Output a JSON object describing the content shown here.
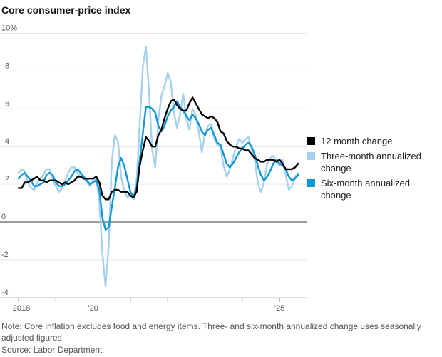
{
  "title": "Core consumer-price index",
  "legend": {
    "items": [
      {
        "label": "12 month change"
      },
      {
        "label": "Three-month annualized change"
      },
      {
        "label": "Six-month annualized change"
      }
    ]
  },
  "notes": {
    "note": "Note: Core inflation excludes food and energy items. Three- and six-month annualized change uses seasonally adjusted figures.",
    "source": "Source: Labor Department"
  },
  "chart_data": {
    "type": "line",
    "title": "Core consumer-price index",
    "xlabel": "",
    "ylabel": "",
    "unit": "percent",
    "frequency": "monthly",
    "x_start": "2018-01",
    "x_end": "2025-07",
    "ylim": [
      -4,
      10
    ],
    "grid": "horizontal",
    "legend_position": "right",
    "y_ticks": [
      10,
      8,
      6,
      4,
      2,
      0,
      -2,
      -4
    ],
    "y_tick_labels": [
      "10%",
      "8",
      "6",
      "4",
      "2",
      "0",
      "-2",
      "-4"
    ],
    "x_tick_years": [
      2018,
      2019,
      2020,
      2021,
      2022,
      2023,
      2024,
      2025
    ],
    "x_tick_labels": [
      "2018",
      "",
      "’20",
      "",
      "",
      "",
      "",
      "’25"
    ],
    "series": [
      {
        "name": "12 month change",
        "color": "#000000",
        "values": [
          1.8,
          1.8,
          2.1,
          2.1,
          2.2,
          2.3,
          2.4,
          2.2,
          2.2,
          2.1,
          2.2,
          2.2,
          2.2,
          2.1,
          2.0,
          2.1,
          2.0,
          2.1,
          2.2,
          2.4,
          2.4,
          2.3,
          2.3,
          2.3,
          2.3,
          2.4,
          2.1,
          1.4,
          1.2,
          1.2,
          1.6,
          1.7,
          1.7,
          1.6,
          1.6,
          1.6,
          1.4,
          1.3,
          1.6,
          3.0,
          3.8,
          4.5,
          4.3,
          4.0,
          4.0,
          4.6,
          4.9,
          5.5,
          6.0,
          6.4,
          6.5,
          6.2,
          6.0,
          5.9,
          5.9,
          6.3,
          6.6,
          6.3,
          6.0,
          5.7,
          5.6,
          5.5,
          5.6,
          5.5,
          5.3,
          4.8,
          4.7,
          4.3,
          4.1,
          4.0,
          4.0,
          3.9,
          3.9,
          3.8,
          3.8,
          3.6,
          3.4,
          3.3,
          3.2,
          3.2,
          3.3,
          3.3,
          3.3,
          3.2,
          3.3,
          3.1,
          2.8,
          2.8,
          2.8,
          2.9,
          3.1
        ]
      },
      {
        "name": "Three-month annualized change",
        "color": "#a5d0ee",
        "values": [
          2.6,
          2.8,
          2.7,
          2.1,
          1.8,
          1.7,
          2.1,
          2.3,
          2.5,
          2.8,
          2.8,
          2.2,
          1.9,
          1.6,
          1.8,
          2.2,
          2.6,
          2.9,
          2.9,
          2.6,
          2.4,
          2.3,
          2.1,
          1.9,
          2.2,
          2.3,
          1.1,
          -1.7,
          -3.4,
          -1.3,
          3.2,
          4.6,
          4.3,
          2.4,
          1.7,
          1.3,
          1.4,
          1.2,
          2.2,
          5.2,
          8.2,
          9.3,
          6.9,
          3.8,
          2.9,
          5.4,
          6.7,
          7.2,
          7.9,
          7.4,
          5.8,
          5.0,
          5.7,
          6.8,
          5.5,
          4.9,
          6.0,
          5.7,
          4.8,
          3.7,
          4.7,
          5.1,
          5.2,
          4.4,
          4.1,
          4.0,
          3.0,
          2.4,
          2.8,
          3.4,
          4.0,
          4.4,
          4.2,
          4.4,
          4.5,
          3.9,
          3.3,
          2.1,
          1.6,
          2.1,
          3.1,
          3.4,
          3.5,
          3.2,
          3.0,
          3.3,
          2.5,
          1.7,
          1.9,
          2.4,
          2.6
        ]
      },
      {
        "name": "Six-month annualized change",
        "color": "#0d97d6",
        "values": [
          2.3,
          2.5,
          2.6,
          2.4,
          2.2,
          1.9,
          1.9,
          2.0,
          2.1,
          2.5,
          2.6,
          2.5,
          2.1,
          1.9,
          1.9,
          2.0,
          2.2,
          2.4,
          2.7,
          2.8,
          2.6,
          2.4,
          2.2,
          2.0,
          2.1,
          2.2,
          1.7,
          0.2,
          -0.4,
          -0.3,
          0.8,
          1.8,
          2.9,
          3.4,
          3.0,
          2.3,
          1.6,
          1.3,
          1.8,
          3.3,
          4.7,
          6.1,
          6.1,
          6.0,
          5.8,
          5.1,
          4.8,
          5.1,
          5.6,
          5.9,
          6.1,
          6.4,
          6.1,
          5.9,
          5.6,
          5.4,
          5.7,
          5.5,
          5.2,
          4.8,
          4.6,
          4.9,
          5.0,
          4.6,
          4.2,
          4.1,
          3.6,
          3.1,
          2.9,
          3.1,
          3.4,
          3.7,
          3.9,
          4.1,
          4.2,
          4.0,
          3.6,
          3.0,
          2.5,
          2.2,
          2.4,
          2.7,
          3.1,
          3.3,
          3.1,
          3.0,
          2.8,
          2.4,
          2.2,
          2.3,
          2.5
        ]
      }
    ]
  }
}
